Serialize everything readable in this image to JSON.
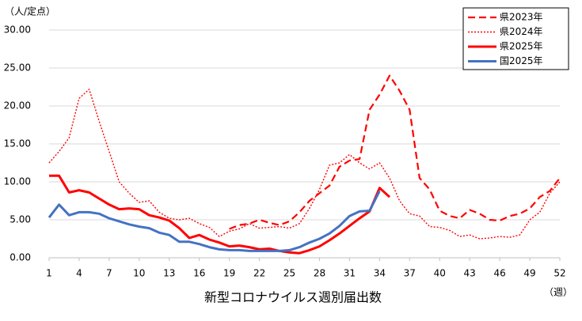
{
  "chart_data": {
    "type": "line",
    "y_unit_label": "（人/定点）",
    "x_unit_label": "（週）",
    "x_title": "新型コロナウイルス週別届出数",
    "x": [
      1,
      2,
      3,
      4,
      5,
      6,
      7,
      8,
      9,
      10,
      11,
      12,
      13,
      14,
      15,
      16,
      17,
      18,
      19,
      20,
      21,
      22,
      23,
      24,
      25,
      26,
      27,
      28,
      29,
      30,
      31,
      32,
      33,
      34,
      35,
      36,
      37,
      38,
      39,
      40,
      41,
      42,
      43,
      44,
      45,
      46,
      47,
      48,
      49,
      50,
      51,
      52
    ],
    "xlim": [
      1,
      52
    ],
    "xticks": [
      1,
      4,
      7,
      10,
      13,
      16,
      19,
      22,
      25,
      28,
      31,
      34,
      37,
      40,
      43,
      46,
      49,
      52
    ],
    "ylim": [
      0,
      30
    ],
    "yticks": [
      {
        "value": 0,
        "label": "0.00"
      },
      {
        "value": 5,
        "label": "5.00"
      },
      {
        "value": 10,
        "label": "10.00"
      },
      {
        "value": 15,
        "label": "15.00"
      },
      {
        "value": 20,
        "label": "20.00"
      },
      {
        "value": 25,
        "label": "25.00"
      },
      {
        "value": 30,
        "label": "30.00"
      }
    ],
    "grid": true,
    "legend": "top-right",
    "series": [
      {
        "name": "県2023年",
        "color": "#ff0000",
        "style": "dashed",
        "values": [
          null,
          null,
          null,
          null,
          null,
          null,
          null,
          null,
          null,
          null,
          null,
          null,
          null,
          null,
          null,
          null,
          null,
          null,
          3.8,
          4.3,
          4.5,
          5.0,
          4.6,
          4.3,
          4.8,
          6.0,
          7.5,
          8.5,
          9.5,
          12.0,
          12.8,
          13.0,
          19.5,
          21.5,
          24.0,
          22.0,
          19.5,
          10.5,
          9.0,
          6.2,
          5.5,
          5.2,
          6.3,
          5.8,
          5.0,
          4.9,
          5.5,
          5.8,
          6.5,
          8.0,
          8.8,
          10.5
        ]
      },
      {
        "name": "県2024年",
        "color": "#ff0000",
        "style": "dotted",
        "values": [
          12.5,
          14.0,
          15.8,
          21.0,
          22.2,
          18.0,
          14.0,
          10.0,
          8.5,
          7.3,
          7.5,
          6.0,
          5.2,
          5.0,
          5.2,
          4.5,
          4.0,
          2.8,
          3.5,
          3.8,
          4.5,
          3.9,
          4.0,
          4.1,
          3.9,
          4.5,
          6.5,
          9.0,
          12.2,
          12.5,
          13.6,
          12.5,
          11.7,
          12.5,
          10.5,
          7.5,
          5.8,
          5.5,
          4.1,
          4.0,
          3.6,
          2.8,
          3.0,
          2.5,
          2.6,
          2.8,
          2.7,
          3.0,
          5.0,
          6.0,
          8.5,
          10.0
        ]
      },
      {
        "name": "県2025年",
        "color": "#ff0000",
        "style": "solid",
        "values": [
          10.8,
          10.8,
          8.6,
          8.9,
          8.6,
          7.8,
          7.0,
          6.4,
          6.5,
          6.4,
          5.6,
          5.3,
          4.9,
          3.9,
          2.6,
          3.0,
          2.4,
          2.0,
          1.5,
          1.6,
          1.4,
          1.1,
          1.2,
          0.9,
          0.7,
          0.6,
          1.0,
          1.5,
          2.3,
          3.2,
          4.2,
          5.2,
          6.1,
          9.2,
          8.0,
          null,
          null,
          null,
          null,
          null,
          null,
          null,
          null,
          null,
          null,
          null,
          null,
          null,
          null,
          null,
          null,
          null
        ]
      },
      {
        "name": "国2025年",
        "color": "#4472c4",
        "style": "solid",
        "values": [
          5.3,
          7.0,
          5.6,
          6.0,
          6.0,
          5.8,
          5.2,
          4.8,
          4.4,
          4.1,
          3.9,
          3.3,
          3.0,
          2.1,
          2.1,
          1.8,
          1.4,
          1.1,
          1.0,
          1.0,
          0.9,
          0.9,
          0.9,
          0.9,
          1.0,
          1.4,
          2.0,
          2.5,
          3.2,
          4.2,
          5.5,
          6.1,
          6.2,
          8.8,
          null,
          null,
          null,
          null,
          null,
          null,
          null,
          null,
          null,
          null,
          null,
          null,
          null,
          null,
          null,
          null,
          null,
          null
        ]
      }
    ]
  }
}
